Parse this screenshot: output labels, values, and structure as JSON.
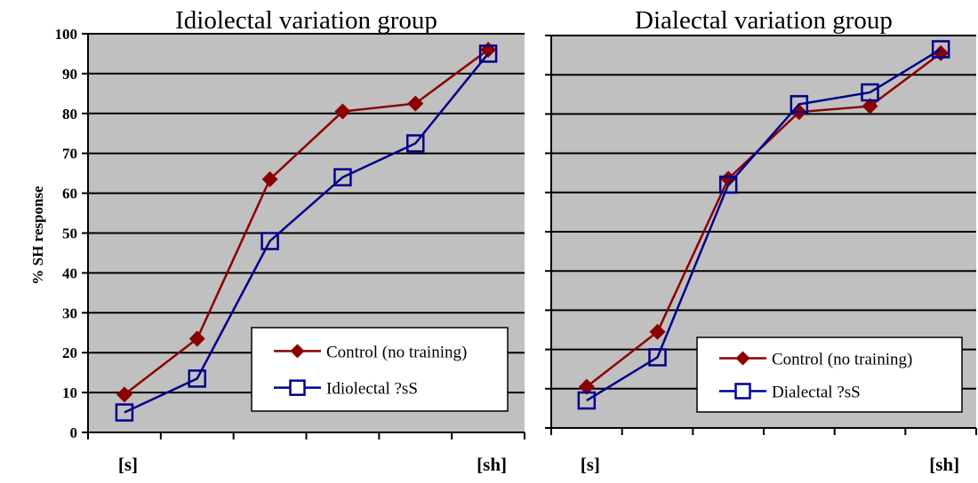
{
  "chart_data": [
    {
      "type": "line",
      "title": "Idiolectal variation group",
      "ylabel": "% SH response",
      "xlabel": "",
      "ylim": [
        0,
        100
      ],
      "yticks": [
        0,
        10,
        20,
        30,
        40,
        50,
        60,
        70,
        80,
        90,
        100
      ],
      "x": [
        1,
        2,
        3,
        4,
        5,
        6
      ],
      "category_labels": [
        "[s]",
        "",
        "",
        "",
        "",
        "[sh]"
      ],
      "grid": true,
      "legend_position": "bottom-right",
      "series": [
        {
          "name": "Control (no training)",
          "color": "#8b0000",
          "marker": "filled-diamond",
          "values": [
            9.5,
            23.5,
            63.5,
            80.5,
            82.5,
            96
          ]
        },
        {
          "name": "Idiolectal ?sS",
          "color": "#00008b",
          "marker": "open-square",
          "values": [
            5,
            13.5,
            48,
            64,
            72.5,
            95
          ]
        }
      ]
    },
    {
      "type": "line",
      "title": "Dialectal variation group",
      "ylabel": "",
      "xlabel": "",
      "ylim": [
        0,
        100
      ],
      "x": [
        1,
        2,
        3,
        4,
        5,
        6
      ],
      "category_labels": [
        "[s]",
        "",
        "",
        "",
        "",
        "[sh]"
      ],
      "grid": true,
      "legend_position": "bottom-right",
      "series": [
        {
          "name": "Control (no training)",
          "color": "#8b0000",
          "marker": "filled-diamond",
          "values": [
            10.5,
            24.5,
            63.5,
            80.5,
            82,
            95.5
          ]
        },
        {
          "name": "Dialectal ?sS",
          "color": "#00008b",
          "marker": "open-square",
          "values": [
            7,
            18,
            62,
            82.5,
            85.5,
            96.5
          ]
        }
      ]
    }
  ]
}
